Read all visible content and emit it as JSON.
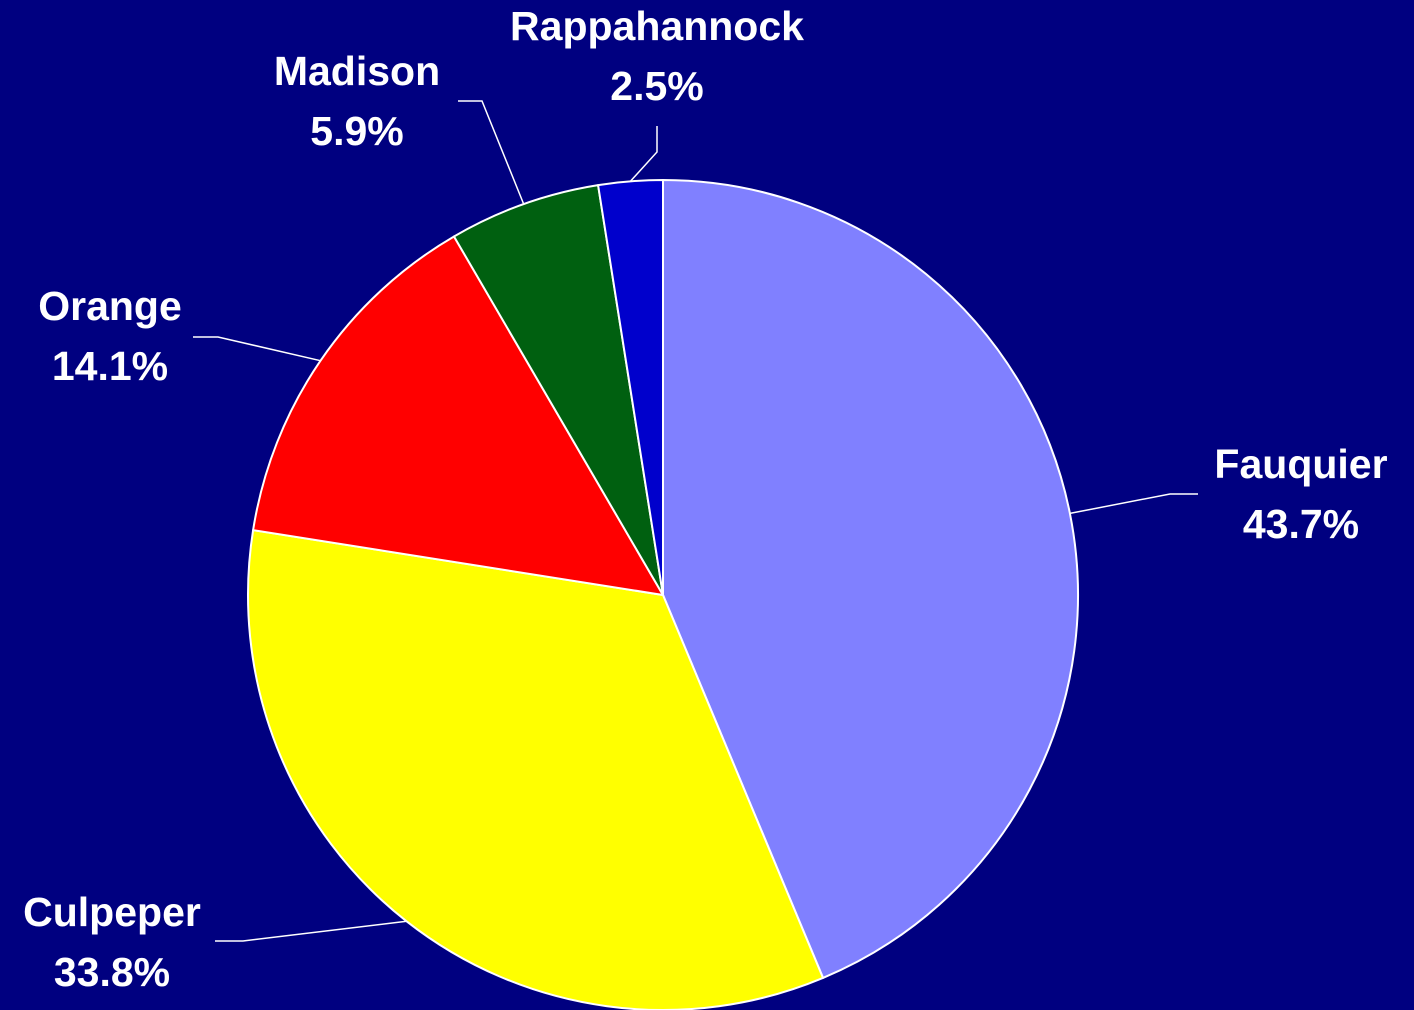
{
  "chart_data": {
    "type": "pie",
    "title": "",
    "background_color": "#000080",
    "slice_border_color": "#ffffff",
    "slices": [
      {
        "label": "Fauquier",
        "value": 43.7,
        "value_label": "43.7%",
        "color": "#8080ff"
      },
      {
        "label": "Culpeper",
        "value": 33.8,
        "value_label": "33.8%",
        "color": "#ffff00"
      },
      {
        "label": "Orange",
        "value": 14.1,
        "value_label": "14.1%",
        "color": "#ff0000"
      },
      {
        "label": "Madison",
        "value": 5.9,
        "value_label": "5.9%",
        "color": "#006010"
      },
      {
        "label": "Rappahannock",
        "value": 2.5,
        "value_label": "2.5%",
        "color": "#0000cc"
      }
    ],
    "start_angle": "12 o'clock",
    "direction": "clockwise",
    "legend": "none",
    "labels": "outside with leader lines"
  }
}
